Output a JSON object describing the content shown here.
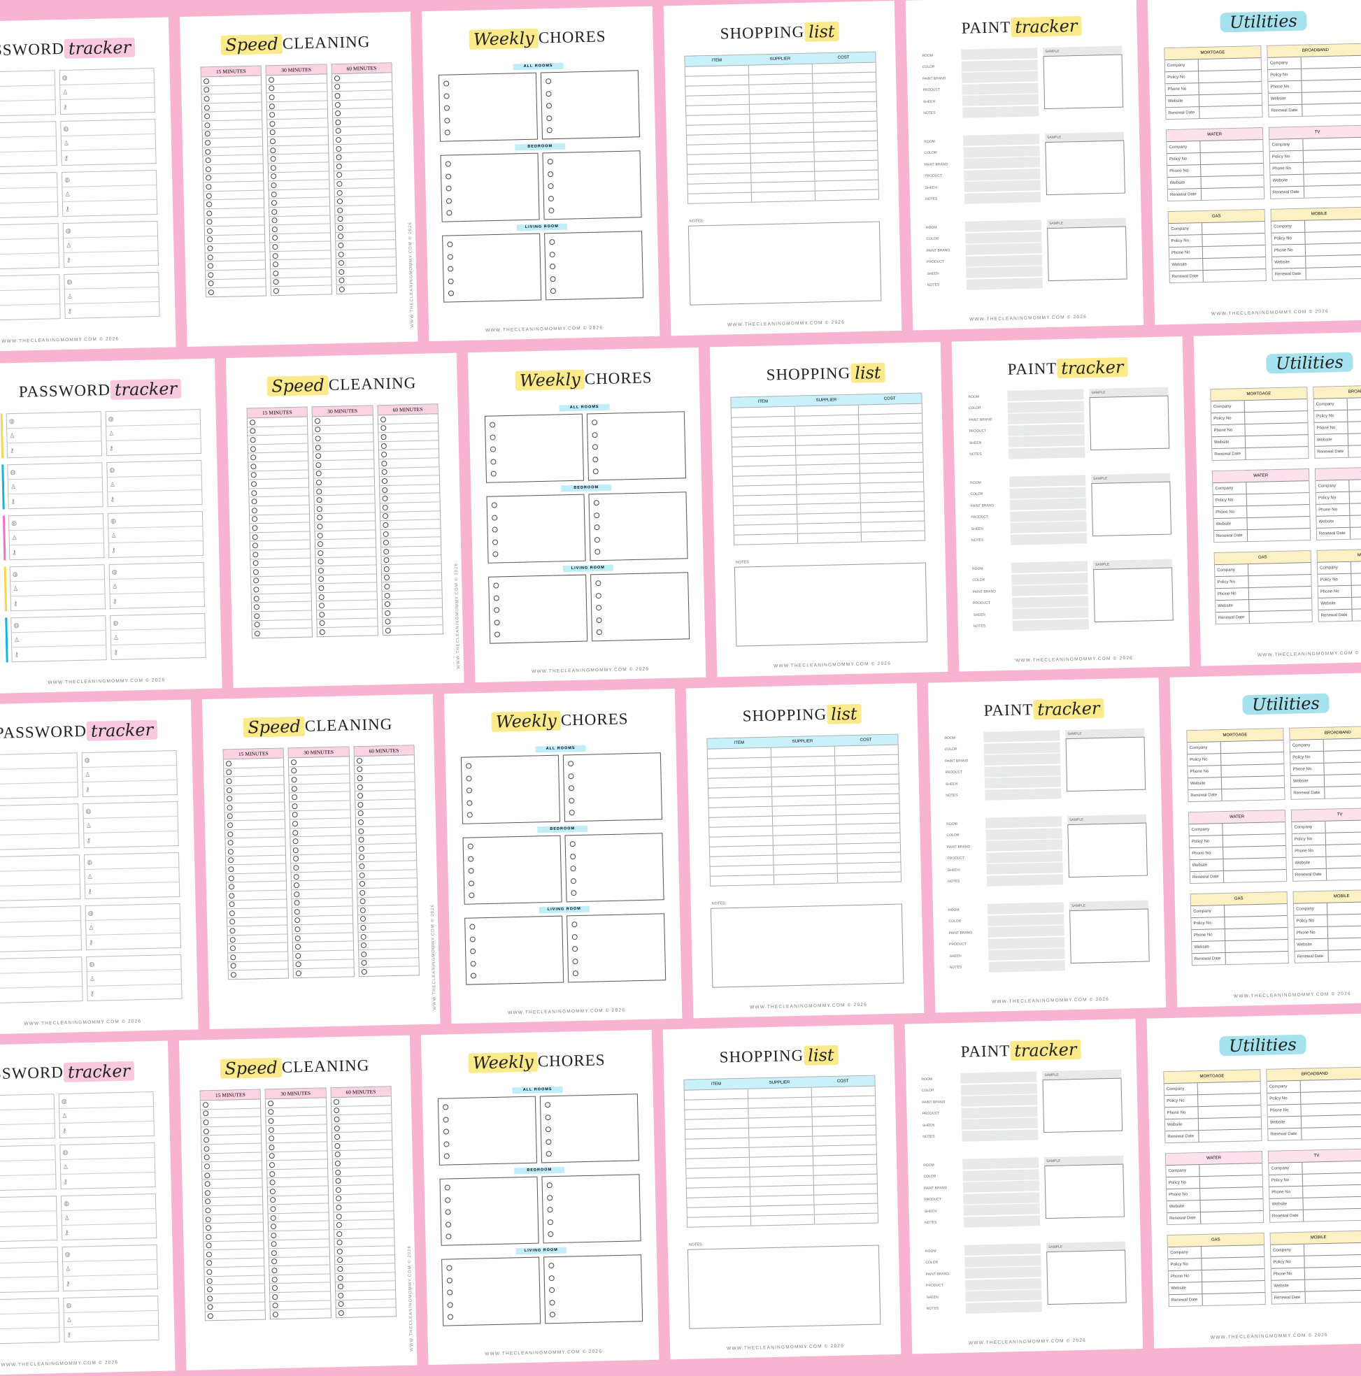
{
  "background_color": "#f7b3cf",
  "footer": "WWW.THECLEANINGMOMMY.COM © 2026",
  "pages": {
    "password": {
      "title": "PASSWORD",
      "script": "tracker",
      "highlight": "#f8c8de",
      "group_colors": [
        "#f7d64f",
        "#14b5d6",
        "#f26fcf",
        "#f7d64f",
        "#14b5d6"
      ],
      "icons": [
        "globe-icon",
        "user-icon",
        "key-icon"
      ]
    },
    "speed": {
      "script": "Speed",
      "title": "CLEANING",
      "highlight": "#fbe98a",
      "columns": [
        "15 MINUTES",
        "30 MINUTES",
        "60 MINUTES"
      ],
      "header_color": "#fbd3e3"
    },
    "chores": {
      "script": "Weekly",
      "title": "CHORES",
      "highlight": "#fbe98a",
      "sections": [
        "ALL ROOMS",
        "BEDROOM",
        "LIVING ROOM"
      ],
      "label_color": "#bfeefa"
    },
    "shopping": {
      "title": "SHOPPING",
      "script": "list",
      "highlight": "#fbe98a",
      "columns": [
        "ITEM",
        "SUPPLIER",
        "COST"
      ],
      "notes_label": "NOTES"
    },
    "paint": {
      "title": "PAINT",
      "script": "tracker",
      "highlight": "#fbe98a",
      "fields": [
        "ROOM",
        "COLOR",
        "PAINT BRAND",
        "PRODUCT",
        "SHEEN",
        "NOTES"
      ],
      "sample_label": "SAMPLE"
    },
    "utilities": {
      "script": "Utilities",
      "highlight": "#a6e1ee",
      "tables": [
        {
          "name": "MORTGAGE",
          "color": "#fdf1c4"
        },
        {
          "name": "BROADBAND",
          "color": "#fdf1c4"
        },
        {
          "name": "WATER",
          "color": "#fde1ec"
        },
        {
          "name": "TV",
          "color": "#fde1ec"
        },
        {
          "name": "GAS",
          "color": "#fdf1c4"
        },
        {
          "name": "MOBILE",
          "color": "#fdf1c4"
        }
      ],
      "rows": [
        "Company",
        "Policy No",
        "Phone No",
        "Website",
        "Renewal Date"
      ]
    }
  }
}
